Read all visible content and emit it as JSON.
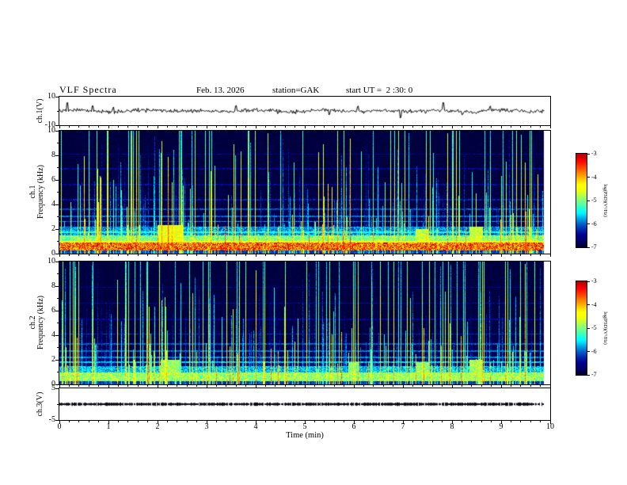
{
  "header": {
    "title": "VLF Spectra",
    "date": "Feb. 13. 2026",
    "station": "station=GAK",
    "start_ut": "start UT =  2 :30: 0"
  },
  "x_axis": {
    "label": "Time (min)",
    "min": 0,
    "max": 10,
    "major_ticks": [
      0,
      1,
      2,
      3,
      4,
      5,
      6,
      7,
      8,
      9,
      10
    ],
    "minor_tick_step": 0.2,
    "data_end_min": 9.87
  },
  "panels": {
    "ch1_wave": {
      "ylabel": "ch.1(V)",
      "ymin": -10,
      "ymax": 10,
      "yticks": [
        10,
        -10
      ]
    },
    "ch1_spec": {
      "ylabel_line1": "ch.1",
      "ylabel_line2": "Frequency (kHz)",
      "ymin": 0,
      "ymax": 10,
      "yticks": [
        10,
        8,
        6,
        4,
        2,
        0
      ]
    },
    "ch2_spec": {
      "ylabel_line1": "ch.2",
      "ylabel_line2": "Frequency (kHz)",
      "ymin": 0,
      "ymax": 10,
      "yticks": [
        10,
        8,
        6,
        4,
        2,
        0
      ]
    },
    "ch3_wave": {
      "ylabel": "ch.3(V)",
      "ymin": -5,
      "ymax": 5,
      "yticks": [
        5,
        -5
      ]
    }
  },
  "colorbars": [
    {
      "label": "log(PSD)(V²/Hz)",
      "min": -7,
      "max": -3,
      "ticks": [
        -3,
        -4,
        -5,
        -6,
        -7
      ]
    },
    {
      "label": "log(PSD)(V²/Hz)",
      "min": -7,
      "max": -3,
      "ticks": [
        -3,
        -4,
        -5,
        -6,
        -7
      ]
    }
  ],
  "colormap": {
    "type": "jet-dark",
    "reference_stops": [
      "#000a22",
      "#0000aa",
      "#00ffff",
      "#00ff00",
      "#ffff00",
      "#ff8800",
      "#b40000"
    ]
  },
  "chart_data": [
    {
      "type": "line",
      "name": "ch1-voltage-waveform",
      "panel": "ch.1(V)",
      "x_label": "Time (min)",
      "x_range": [
        0,
        9.87
      ],
      "y_range": [
        -10,
        10
      ],
      "description": "Noisy VLF channel-1 voltage trace centred on 0 V, roughly ±1.5 V ripple with intermittent impulses to about ±5 V",
      "seed": 77001,
      "noise_amp": 1.3,
      "wobble_amp": 0.6,
      "spike_prob": 0.02,
      "spike_amp": 3.5
    },
    {
      "type": "heatmap",
      "name": "ch1-spectrogram",
      "panel": "ch.1 Frequency (kHz)",
      "x_range": [
        0,
        9.87
      ],
      "f_range_khz": [
        0,
        10
      ],
      "z_label": "log(PSD)(V²/Hz)",
      "z_range": [
        -7,
        -3
      ],
      "description": "VLF spectrogram: intense 0.3-0.9 kHz band near -3.7 (yellow/red), secondary 0.9-1.5 kHz band, banded structure below 4 kHz, dense broadband vertical sferic streaks, dark -7 background above 4 kHz",
      "seed": 11213,
      "background": {
        "base": -7,
        "lowfreq_boost": 0.9,
        "lowfreq_scale": 1.4,
        "noise": 0.22
      },
      "bands": [
        {
          "f0": 0.28,
          "f1": 0.88,
          "level": -3.7,
          "noise": 0.85
        },
        {
          "f0": 0.9,
          "f1": 1.5,
          "level": -5.0,
          "noise": 0.55
        },
        {
          "f0": 1.5,
          "f1": 2.1,
          "level": -5.9,
          "noise": 0.45
        }
      ],
      "lines": [
        {
          "f": 0.97,
          "level": -4.5,
          "hw": 0.05
        },
        {
          "f": 1.75,
          "level": -5.4,
          "hw": 0.06
        },
        {
          "f": 2.15,
          "level": -5.8,
          "hw": 0.05
        },
        {
          "f": 2.6,
          "level": -5.9,
          "hw": 0.05
        },
        {
          "f": 3.05,
          "level": -6.0,
          "hw": 0.05
        },
        {
          "f": 3.6,
          "level": -6.1,
          "hw": 0.05
        },
        {
          "f": 4.4,
          "level": -6.35,
          "hw": 0.05
        },
        {
          "f": 5.6,
          "level": -6.5,
          "hw": 0.05
        },
        {
          "f": 6.9,
          "level": -6.5,
          "hw": 0.05
        },
        {
          "f": 8.1,
          "level": -6.55,
          "hw": 0.05
        }
      ],
      "streaks": {
        "probability": 0.58,
        "amp_min": -6.4,
        "amp_range": 2.9,
        "top_min": 1.5,
        "top_range": 8.5,
        "freq_decay": 0.1,
        "tall_prob": 0.1,
        "tall_amp": -4.6
      },
      "patches": [
        {
          "t0": 2.0,
          "t1": 2.5,
          "f0": 0.9,
          "f1": 2.3,
          "level": -4.5
        },
        {
          "t0": 7.25,
          "t1": 7.5,
          "f0": 0.8,
          "f1": 2.0,
          "level": -4.7
        },
        {
          "t0": 8.35,
          "t1": 8.62,
          "f0": 0.8,
          "f1": 2.2,
          "level": -4.7
        }
      ]
    },
    {
      "type": "heatmap",
      "name": "ch2-spectrogram",
      "panel": "ch.2 Frequency (kHz)",
      "x_range": [
        0,
        9.87
      ],
      "f_range_khz": [
        0,
        10
      ],
      "z_label": "log(PSD)(V²/Hz)",
      "z_range": [
        -7,
        -3
      ],
      "description": "VLF spectrogram: moderate 0.3-1.0 kHz band near -4.9 (green/cyan), banded structure below 4 kHz, dense vertical sferic streaks, dark -7 background above 4 kHz",
      "seed": 22324,
      "background": {
        "base": -7,
        "lowfreq_boost": 0.85,
        "lowfreq_scale": 1.4,
        "noise": 0.22
      },
      "bands": [
        {
          "f0": 0.28,
          "f1": 0.95,
          "level": -4.9,
          "noise": 0.55
        },
        {
          "f0": 0.95,
          "f1": 1.5,
          "level": -5.7,
          "noise": 0.45
        }
      ],
      "lines": [
        {
          "f": 1.8,
          "level": -5.7,
          "hw": 0.06
        },
        {
          "f": 2.2,
          "level": -5.9,
          "hw": 0.05
        },
        {
          "f": 2.7,
          "level": -6.0,
          "hw": 0.05
        },
        {
          "f": 3.3,
          "level": -6.1,
          "hw": 0.05
        },
        {
          "f": 4.1,
          "level": -6.3,
          "hw": 0.05
        },
        {
          "f": 5.3,
          "level": -6.5,
          "hw": 0.05
        },
        {
          "f": 6.6,
          "level": -6.5,
          "hw": 0.05
        },
        {
          "f": 7.9,
          "level": -6.55,
          "hw": 0.05
        }
      ],
      "streaks": {
        "probability": 0.55,
        "amp_min": -6.4,
        "amp_range": 2.7,
        "top_min": 1.5,
        "top_range": 8.5,
        "freq_decay": 0.1,
        "tall_prob": 0.09,
        "tall_amp": -4.8
      },
      "patches": [
        {
          "t0": 2.05,
          "t1": 2.45,
          "f0": 0.8,
          "f1": 2.0,
          "level": -4.9
        },
        {
          "t0": 5.9,
          "t1": 6.1,
          "f0": 0.8,
          "f1": 1.8,
          "level": -5.0
        },
        {
          "t0": 7.25,
          "t1": 7.5,
          "f0": 0.8,
          "f1": 1.8,
          "level": -4.9
        },
        {
          "t0": 8.35,
          "t1": 8.6,
          "f0": 0.8,
          "f1": 2.0,
          "level": -4.9
        }
      ]
    },
    {
      "type": "line",
      "name": "ch3-voltage-waveform",
      "panel": "ch.3(V)",
      "x_range": [
        0,
        9.87
      ],
      "y_range": [
        -5,
        5
      ],
      "baseline": 0,
      "description": "Essentially flat channel-3 trace at 0 V (dense near-zero samples forming a thick dark line)",
      "seed": 9303,
      "band_v": 0.35
    }
  ]
}
